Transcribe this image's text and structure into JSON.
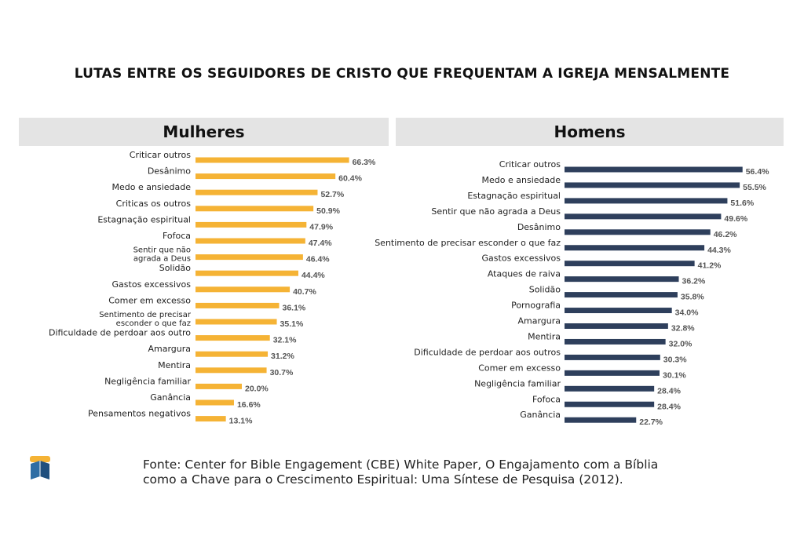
{
  "title": "LUTAS ENTRE OS SEGUIDORES DE CRISTO QUE FREQUENTAM A IGREJA MENSALMENTE",
  "footer": {
    "line1": "Fonte: Center for Bible Engagement (CBE) White Paper, O Engajamento com a Bíblia",
    "line2": "como a Chave para o Crescimento Espiritual: Uma Síntese de Pesquisa (2012)."
  },
  "colors": {
    "women": "#f5b335",
    "men": "#2e3f5c",
    "header_bg": "#e4e4e4"
  },
  "chart_data": [
    {
      "type": "bar",
      "orientation": "horizontal",
      "title": "Mulheres",
      "value_suffix": "%",
      "categories": [
        "Criticar outros",
        "Desânimo",
        "Medo e ansiedade",
        "Criticas os outros",
        "Estagnação espiritual",
        "Fofoca",
        [
          "Sentir que não",
          "agrada a Deus"
        ],
        "Solidão",
        "Gastos excessivos",
        "Comer em excesso",
        [
          "Sentimento de precisar",
          "esconder o que faz"
        ],
        "Dificuldade de perdoar aos outro",
        "Amargura",
        "Mentira",
        "Negligência familiar",
        "Ganância",
        "Pensamentos negativos"
      ],
      "values": [
        66.3,
        60.4,
        52.7,
        50.9,
        47.9,
        47.4,
        46.4,
        44.4,
        40.7,
        36.1,
        35.1,
        32.1,
        31.2,
        30.7,
        20.0,
        16.6,
        13.1
      ],
      "labels": [
        "66.3%",
        "60.4%",
        "52.7%",
        "50.9%",
        "47.9%",
        "47.4%",
        "46.4%",
        "44.4%",
        "40.7%",
        "36.1%",
        "35.1%",
        "32.1%",
        "31.2%",
        "30.7%",
        "20.0%",
        "16.6%",
        "13.1%"
      ],
      "color": "#f5b335"
    },
    {
      "type": "bar",
      "orientation": "horizontal",
      "title": "Homens",
      "value_suffix": "%",
      "categories": [
        "Criticar outros",
        "Medo e ansiedade",
        "Estagnação espiritual",
        "Sentir que não agrada a Deus",
        "Desânimo",
        "Sentimento de precisar esconder o que faz",
        "Gastos excessivos",
        "Ataques de raiva",
        "Solidão",
        "Pornografia",
        "Amargura",
        "Mentira",
        "Dificuldade de perdoar aos outros",
        "Comer em excesso",
        "Negligência familiar",
        "Fofoca",
        "Ganância"
      ],
      "values": [
        56.4,
        55.5,
        51.6,
        49.6,
        46.2,
        44.3,
        41.2,
        36.2,
        35.8,
        34.0,
        32.8,
        32.0,
        30.3,
        30.1,
        28.4,
        28.4,
        22.7
      ],
      "labels": [
        "56.4%",
        "55.5%",
        "51.6%",
        "49.6%",
        "46.2%",
        "44.3%",
        "41.2%",
        "36.2%",
        "35.8%",
        "34.0%",
        "32.8%",
        "32.0%",
        "30.3%",
        "30.1%",
        "28.4%",
        "28.4%",
        "22.7%"
      ],
      "color": "#2e3f5c"
    }
  ]
}
